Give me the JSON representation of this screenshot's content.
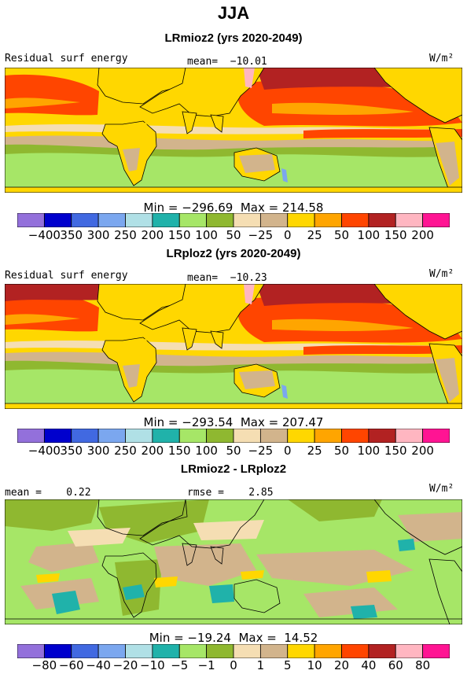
{
  "title": "JJA",
  "units": "W/m²",
  "panels": [
    {
      "subtitle": "LRmioz2 (yrs 2020-2049)",
      "left_label": "Residual surf energy",
      "center_label": "mean=  −10.01",
      "stats": "Min = −296.69  Max = 214.58",
      "palette": "abs"
    },
    {
      "subtitle": "LRploz2 (yrs 2020-2049)",
      "left_label": "Residual surf energy",
      "center_label": "mean=  −10.23",
      "stats": "Min = −293.54  Max = 207.47",
      "palette": "abs"
    },
    {
      "subtitle": "LRmioz2 - LRploz2",
      "left_label": "mean =    0.22",
      "center_label": "rmse =    2.85",
      "stats": "Min = −19.24  Max =  14.52",
      "palette": "diff"
    }
  ],
  "colorbar": {
    "colors": [
      "#9370db",
      "#0000cd",
      "#4169e1",
      "#7ba7ef",
      "#b0e0e6",
      "#20b2aa",
      "#a6e667",
      "#8fb830",
      "#f5deb3",
      "#d2b48c",
      "#ffd700",
      "#ffa500",
      "#ff4500",
      "#b22222",
      "#ffb6c1",
      "#ff1493"
    ],
    "abs_ticks": [
      "−400",
      "350",
      "300",
      "250",
      "200",
      "150",
      "100",
      "50",
      "−25",
      "0",
      "25",
      "50",
      "100",
      "150",
      "200"
    ],
    "diff_ticks": [
      "−80",
      "−60",
      "−40",
      "−20",
      "−10",
      "−5",
      "−1",
      "0",
      "1",
      "5",
      "10",
      "20",
      "40",
      "60",
      "80"
    ]
  },
  "map_colors": {
    "ocean_warm": "#ff4500",
    "ocean_hot": "#b22222",
    "ocean_mid": "#ffa500",
    "ocean_yellow": "#ffd700",
    "land_tan": "#d2b48c",
    "southern_green": "#8fb830",
    "light_green": "#a6e667",
    "wheat": "#f5deb3",
    "pink": "#ffb6c1",
    "blue": "#7ba7ef",
    "teal": "#20b2aa"
  }
}
